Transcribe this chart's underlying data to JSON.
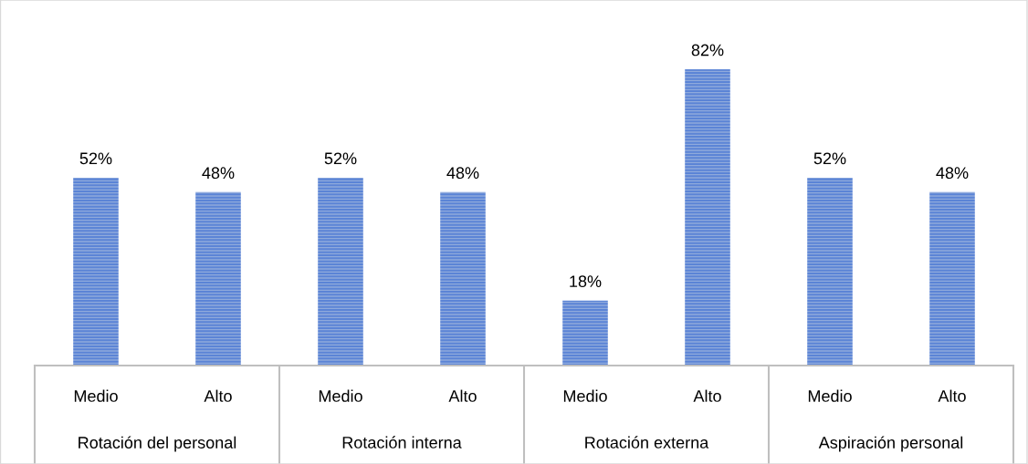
{
  "chart_data": {
    "type": "bar",
    "categories": [
      "Medio",
      "Alto",
      "Medio",
      "Alto",
      "Medio",
      "Alto",
      "Medio",
      "Alto"
    ],
    "values": [
      52,
      48,
      52,
      48,
      18,
      82,
      52,
      48
    ],
    "value_labels": [
      "52%",
      "48%",
      "52%",
      "48%",
      "18%",
      "82%",
      "52%",
      "48%"
    ],
    "color": "#5b84d6",
    "annotations": [
      "Rotación del personal",
      "Rotación interna",
      "Rotación externa",
      "Aspiración personal"
    ]
  }
}
